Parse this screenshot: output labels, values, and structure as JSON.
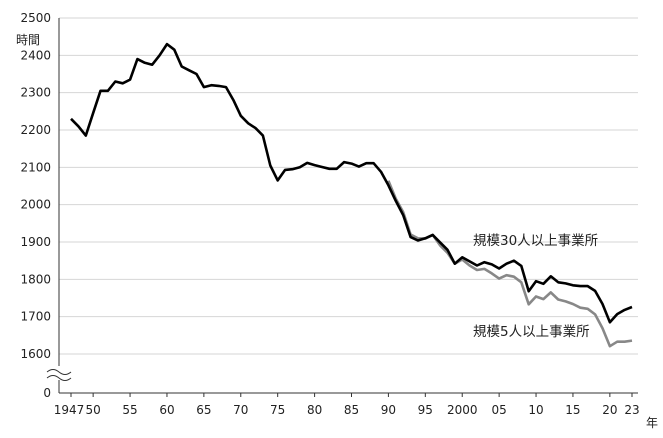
{
  "chart_data": {
    "type": "line",
    "ylabel": "時間",
    "xlabel": "年",
    "y_ticks": [
      "0",
      "1600",
      "1700",
      "1800",
      "1900",
      "2000",
      "2100",
      "2200",
      "2300",
      "2400",
      "2500"
    ],
    "x_ticks": [
      "1947",
      "50",
      "55",
      "60",
      "65",
      "70",
      "75",
      "80",
      "85",
      "90",
      "95",
      "2000",
      "05",
      "10",
      "15",
      "20",
      "23"
    ],
    "y_range": [
      1600,
      2500
    ],
    "y_axis_break": true,
    "x_range": [
      1947,
      2023
    ],
    "grid": "horizontal",
    "series": [
      {
        "name": "規模30人以上事業所",
        "color": "#000000",
        "x": [
          1947,
          1948,
          1949,
          1950,
          1951,
          1952,
          1953,
          1954,
          1955,
          1956,
          1957,
          1958,
          1959,
          1960,
          1961,
          1962,
          1963,
          1964,
          1965,
          1966,
          1967,
          1968,
          1969,
          1970,
          1971,
          1972,
          1973,
          1974,
          1975,
          1976,
          1977,
          1978,
          1979,
          1980,
          1981,
          1982,
          1983,
          1984,
          1985,
          1986,
          1987,
          1988,
          1989,
          1990,
          1991,
          1992,
          1993,
          1994,
          1995,
          1996,
          1997,
          1998,
          1999,
          2000,
          2001,
          2002,
          2003,
          2004,
          2005,
          2006,
          2007,
          2008,
          2009,
          2010,
          2011,
          2012,
          2013,
          2014,
          2015,
          2016,
          2017,
          2018,
          2019,
          2020,
          2021,
          2022,
          2023
        ],
        "values": [
          2230,
          2210,
          2185,
          2245,
          2305,
          2305,
          2330,
          2325,
          2335,
          2390,
          2380,
          2375,
          2400,
          2430,
          2415,
          2370,
          2360,
          2350,
          2315,
          2320,
          2318,
          2315,
          2280,
          2238,
          2218,
          2205,
          2185,
          2105,
          2065,
          2093,
          2095,
          2100,
          2112,
          2106,
          2101,
          2096,
          2096,
          2114,
          2110,
          2102,
          2111,
          2111,
          2088,
          2052,
          2010,
          1972,
          1913,
          1904,
          1910,
          1919,
          1899,
          1879,
          1842,
          1859,
          1848,
          1837,
          1846,
          1840,
          1829,
          1842,
          1850,
          1836,
          1768,
          1795,
          1788,
          1808,
          1792,
          1789,
          1784,
          1782,
          1782,
          1769,
          1734,
          1685,
          1707,
          1718,
          1726
        ]
      },
      {
        "name": "規模5人以上事業所",
        "color": "#888888",
        "x": [
          1990,
          1991,
          1992,
          1993,
          1994,
          1995,
          1996,
          1997,
          1998,
          1999,
          2000,
          2001,
          2002,
          2003,
          2004,
          2005,
          2006,
          2007,
          2008,
          2009,
          2010,
          2011,
          2012,
          2013,
          2014,
          2015,
          2016,
          2017,
          2018,
          2019,
          2020,
          2021,
          2022,
          2023
        ],
        "values": [
          2064,
          2016,
          1980,
          1920,
          1910,
          1909,
          1919,
          1891,
          1871,
          1842,
          1853,
          1837,
          1825,
          1828,
          1816,
          1802,
          1811,
          1807,
          1792,
          1733,
          1754,
          1747,
          1765,
          1746,
          1741,
          1734,
          1724,
          1721,
          1706,
          1669,
          1621,
          1633,
          1633,
          1636
        ]
      }
    ]
  }
}
